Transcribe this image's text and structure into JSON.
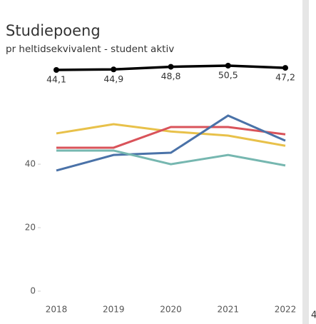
{
  "chart_data": [
    {
      "type": "line",
      "title": "Studiepoeng",
      "subtitle": "pr heltidsekvivalent - student aktiv",
      "color": "#000000",
      "values": [
        44.1,
        44.9,
        48.8,
        50.5,
        47.2
      ],
      "value_labels": [
        "44,1",
        "44,9",
        "48,8",
        "50,5",
        "47,2"
      ],
      "annotation": "4"
    },
    {
      "type": "line",
      "categories": [
        "2018",
        "2019",
        "2020",
        "2021",
        "2022"
      ],
      "series": [
        {
          "color": "#e8c14a",
          "values": [
            49.7,
            52.6,
            50.3,
            49.0,
            45.8
          ]
        },
        {
          "color": "#d9535a",
          "values": [
            45.2,
            45.2,
            51.7,
            51.7,
            49.4
          ]
        },
        {
          "color": "#4a72a8",
          "values": [
            38.0,
            42.9,
            43.6,
            55.3,
            47.4
          ]
        },
        {
          "color": "#76b7b0",
          "values": [
            44.3,
            44.3,
            40.0,
            42.9,
            39.6
          ]
        }
      ],
      "ylim": [
        0,
        58
      ],
      "yticks": [
        0,
        20,
        40
      ]
    }
  ]
}
